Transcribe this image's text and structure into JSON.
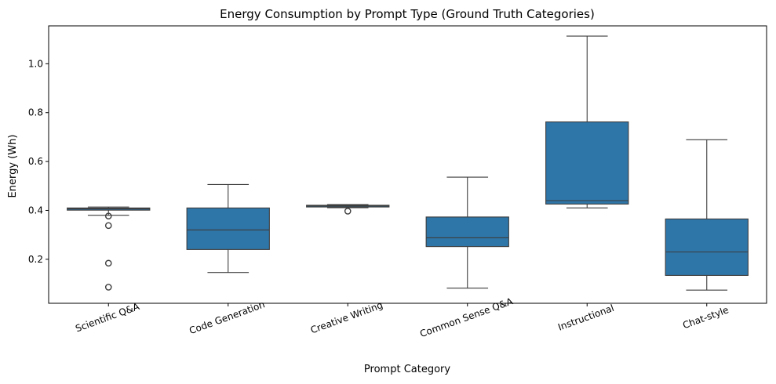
{
  "chart_data": {
    "type": "box",
    "title": "Energy Consumption by Prompt Type (Ground Truth Categories)",
    "xlabel": "Prompt Category",
    "ylabel": "Energy (Wh)",
    "ylim": [
      0.02,
      1.155
    ],
    "yticks": [
      0.2,
      0.4,
      0.6,
      0.8,
      1.0
    ],
    "ytick_labels": [
      "0.2",
      "0.4",
      "0.6",
      "0.8",
      "1.0"
    ],
    "grid": false,
    "color": "#2e75a8",
    "categories": [
      "Scientific Q&A",
      "Code Generation",
      "Creative Writing",
      "Common Sense Q&A",
      "Instructional",
      "Chat-style"
    ],
    "boxes": [
      {
        "whisker_low": 0.38,
        "q1": 0.401,
        "median": 0.406,
        "q3": 0.41,
        "whisker_high": 0.414,
        "outliers": [
          0.377,
          0.338,
          0.184,
          0.086
        ]
      },
      {
        "whisker_low": 0.146,
        "q1": 0.24,
        "median": 0.32,
        "q3": 0.41,
        "whisker_high": 0.506,
        "outliers": []
      },
      {
        "whisker_low": 0.411,
        "q1": 0.414,
        "median": 0.418,
        "q3": 0.421,
        "whisker_high": 0.424,
        "outliers": [
          0.397
        ]
      },
      {
        "whisker_low": 0.082,
        "q1": 0.252,
        "median": 0.288,
        "q3": 0.373,
        "whisker_high": 0.536,
        "outliers": []
      },
      {
        "whisker_low": 0.41,
        "q1": 0.426,
        "median": 0.44,
        "q3": 0.762,
        "whisker_high": 1.113,
        "outliers": []
      },
      {
        "whisker_low": 0.074,
        "q1": 0.134,
        "median": 0.23,
        "q3": 0.365,
        "whisker_high": 0.689,
        "outliers": []
      }
    ]
  }
}
